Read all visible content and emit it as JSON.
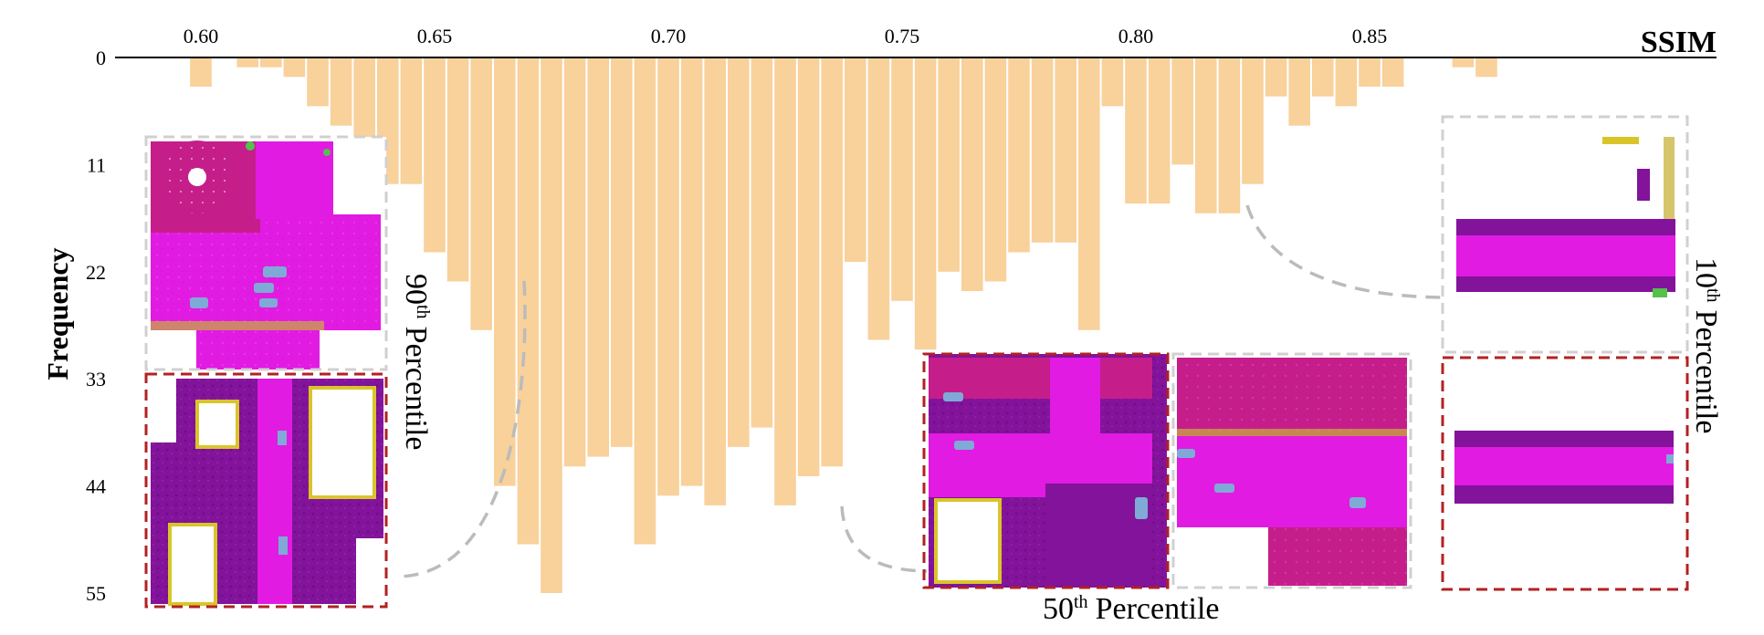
{
  "chart_data": {
    "type": "bar",
    "orientation": "inverted",
    "title": "",
    "xlabel": "SSIM",
    "ylabel": "Frequency",
    "x_ticks": [
      "0.60",
      "0.65",
      "0.70",
      "0.75",
      "0.80",
      "0.85"
    ],
    "y_ticks": [
      "0",
      "11",
      "22",
      "33",
      "44",
      "55"
    ],
    "xlim": [
      0.5734,
      0.8829
    ],
    "ylim": [
      0,
      55
    ],
    "bin_width": 0.005,
    "x": [
      0.6,
      0.605,
      0.61,
      0.615,
      0.62,
      0.625,
      0.63,
      0.635,
      0.64,
      0.645,
      0.65,
      0.655,
      0.66,
      0.665,
      0.67,
      0.675,
      0.68,
      0.685,
      0.69,
      0.695,
      0.7,
      0.705,
      0.71,
      0.715,
      0.72,
      0.725,
      0.73,
      0.735,
      0.74,
      0.745,
      0.75,
      0.755,
      0.76,
      0.765,
      0.77,
      0.775,
      0.78,
      0.785,
      0.79,
      0.795,
      0.8,
      0.805,
      0.81,
      0.815,
      0.82,
      0.825,
      0.83,
      0.835,
      0.84,
      0.845,
      0.85,
      0.855,
      0.86,
      0.865,
      0.87,
      0.875,
      0.88
    ],
    "values": [
      3,
      0,
      1,
      1,
      2,
      5,
      7,
      11,
      13,
      13,
      20,
      23,
      28,
      44,
      50,
      55,
      42,
      41,
      40,
      50,
      45,
      44,
      46,
      40,
      38,
      46,
      43,
      42,
      21,
      29,
      25,
      30,
      22,
      24,
      23,
      20,
      19,
      19,
      28,
      5,
      15,
      15,
      11,
      16,
      16,
      13,
      4,
      7,
      4,
      5,
      3,
      3,
      0,
      0,
      1,
      2,
      0
    ],
    "annotations": {
      "p90": {
        "label": "90",
        "suffix": "th",
        "word": "Percentile"
      },
      "p50": {
        "label": "50",
        "suffix": "th",
        "word": "Percentile"
      },
      "p10": {
        "label": "10",
        "suffix": "th",
        "word": "Percentile"
      }
    },
    "colors": {
      "bar": "#F8D19B",
      "magenta": "#E11BE1",
      "dark_magenta": "#C51E8A",
      "purple": "#82139A",
      "yellow": "#D9C52A",
      "blue": "#7FA9D6",
      "green": "#54C14A",
      "red_frame": "#B22222",
      "gray_frame": "#D0D0D0",
      "connector": "#BBBBBB"
    }
  }
}
